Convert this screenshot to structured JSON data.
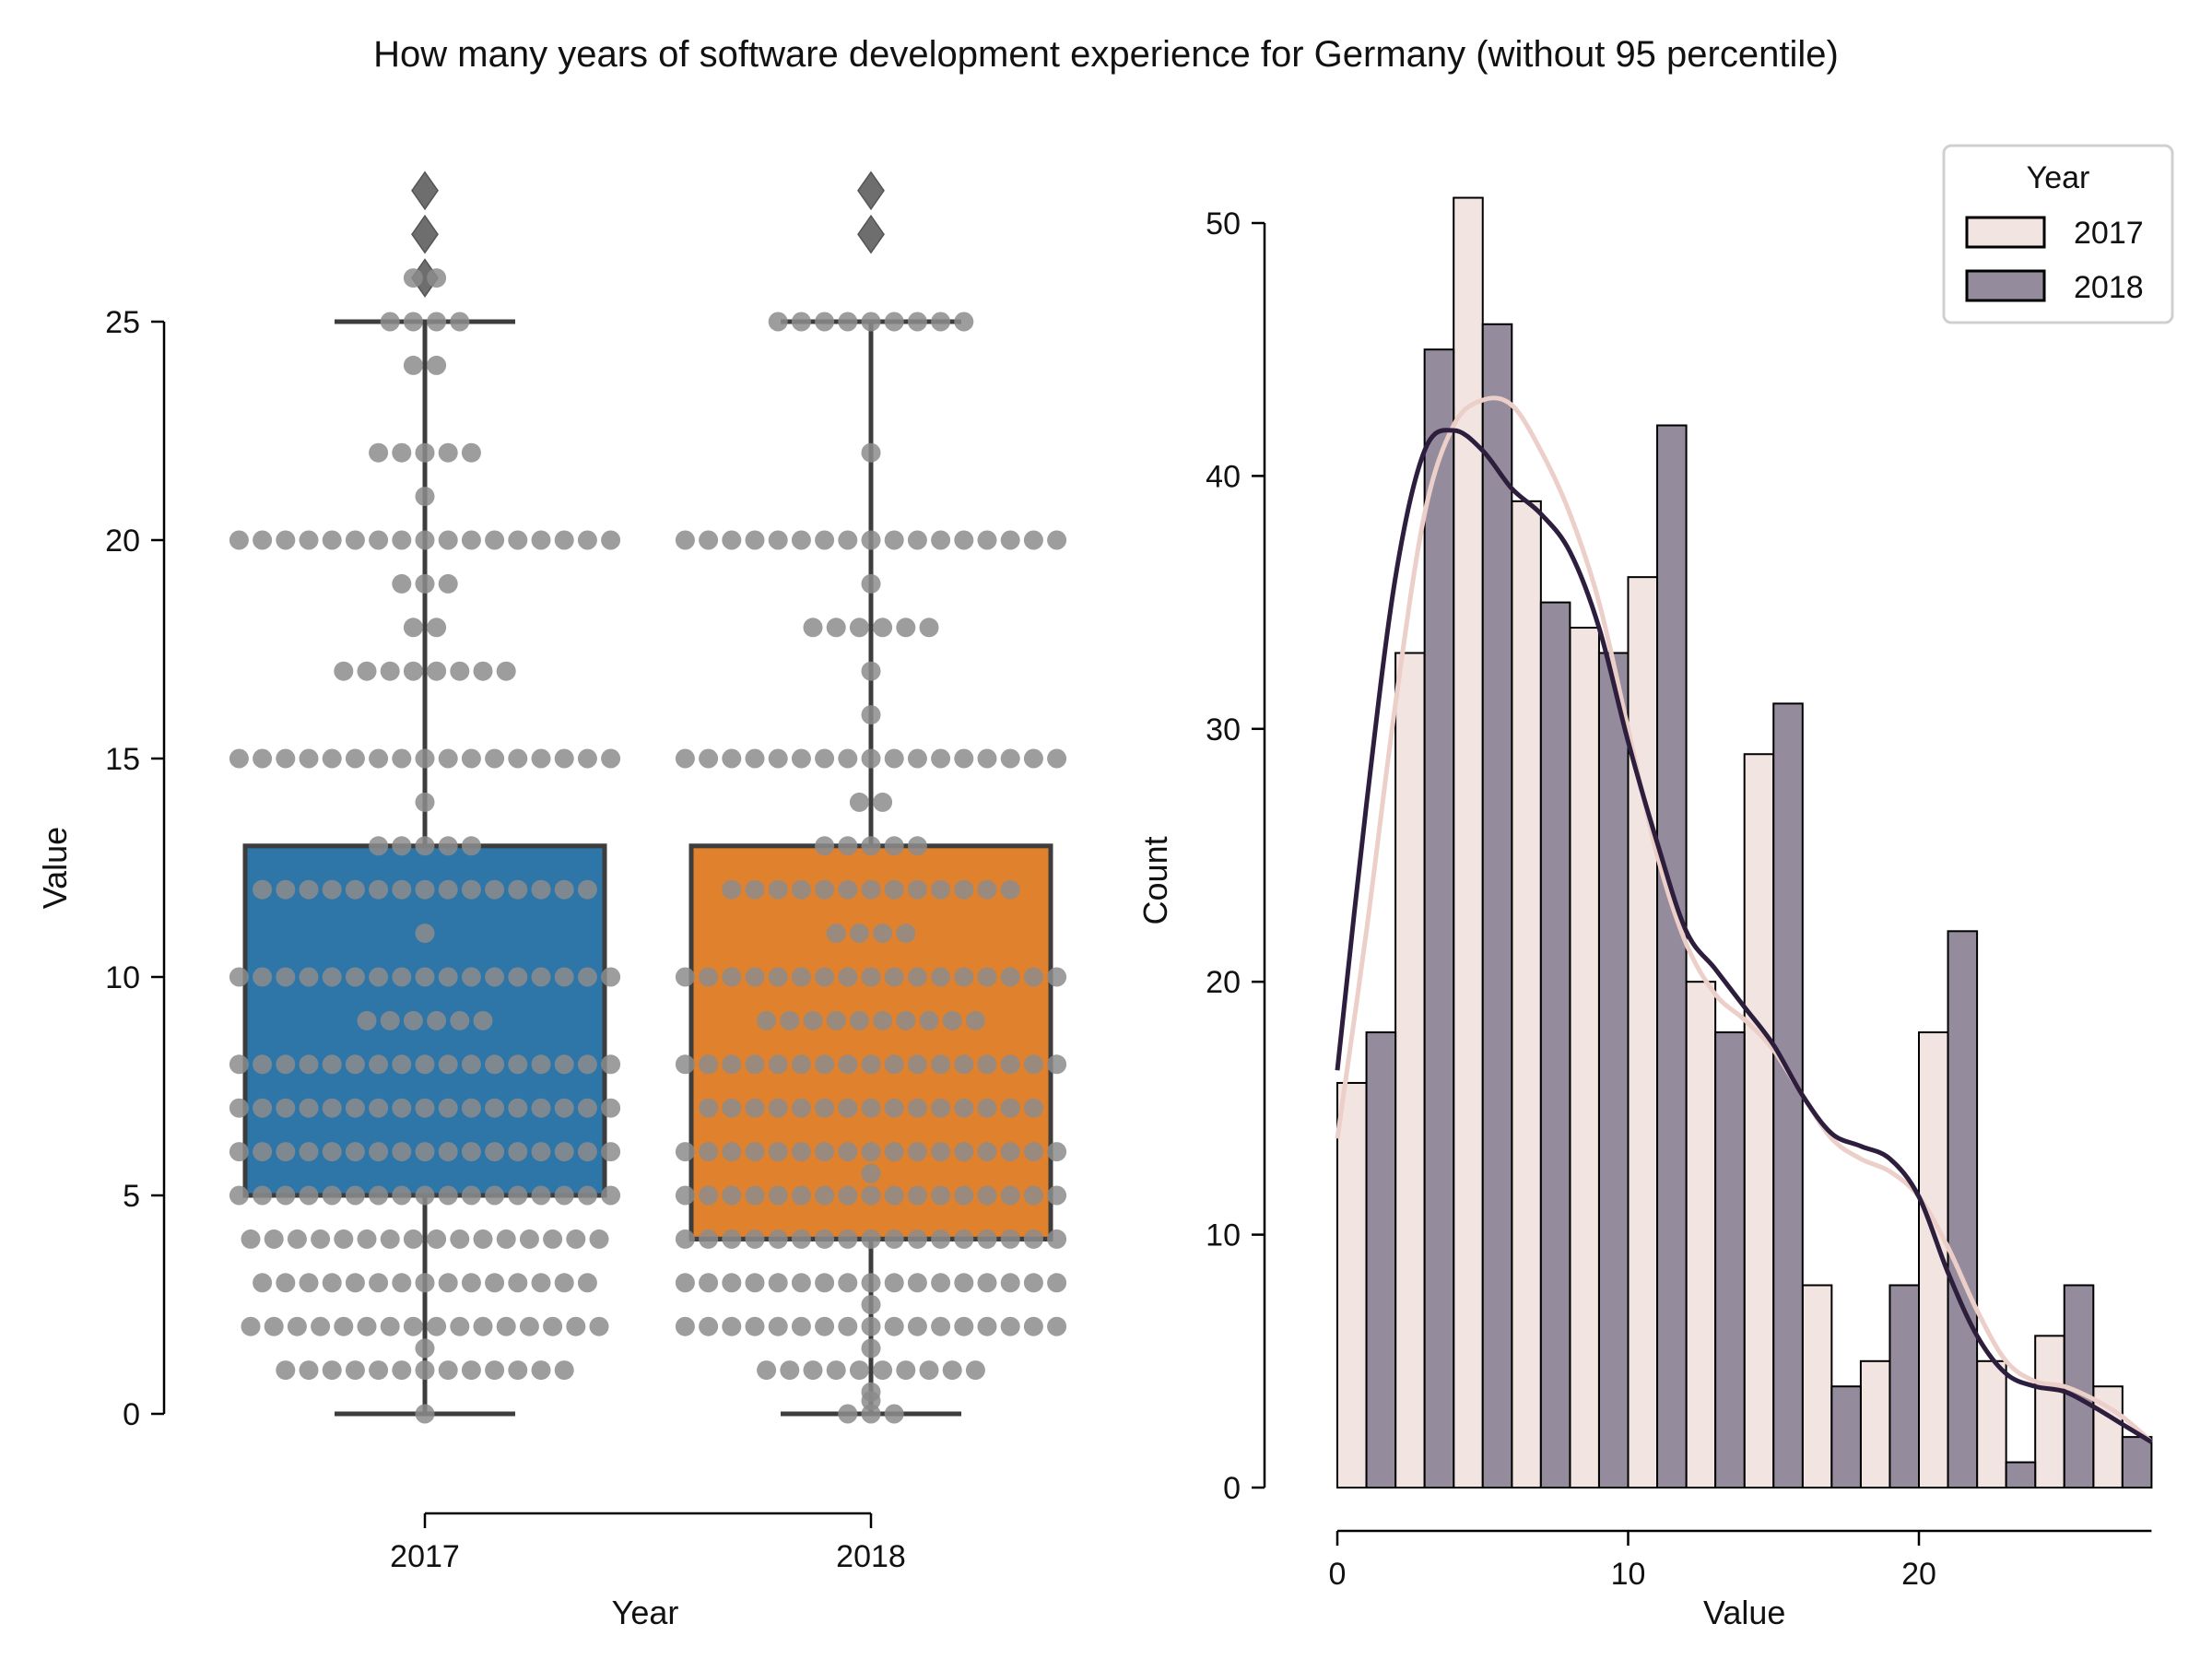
{
  "title": "How many years of software development experience for Germany (without 95 percentile)",
  "chart_data": [
    {
      "type": "box",
      "overlay": "swarm",
      "xlabel": "Year",
      "ylabel": "Value",
      "categories": [
        "2017",
        "2018"
      ],
      "ylim": [
        0,
        28
      ],
      "yticks": [
        0,
        5,
        10,
        15,
        20,
        25
      ],
      "grid": false,
      "colors": [
        "#2e75a8",
        "#e0812d"
      ],
      "swarm_color": "#8c8c8c",
      "outlier_color": "#6e6e6e",
      "boxes": [
        {
          "category": "2017",
          "whisker_low": 0,
          "q1": 5,
          "median": 5,
          "q3": 13,
          "whisker_high": 25,
          "outliers": [
            26,
            27,
            28
          ]
        },
        {
          "category": "2018",
          "whisker_low": 0,
          "q1": 4,
          "median": 4,
          "q3": 13,
          "whisker_high": 25,
          "outliers": [
            27,
            28
          ]
        }
      ],
      "swarm": [
        {
          "category": "2017",
          "levels": [
            {
              "value": 0,
              "n": 1
            },
            {
              "value": 1,
              "n": 13
            },
            {
              "value": 1.5,
              "n": 1
            },
            {
              "value": 2,
              "n": 16
            },
            {
              "value": 3,
              "n": 15
            },
            {
              "value": 4,
              "n": 16
            },
            {
              "value": 5,
              "n": 17
            },
            {
              "value": 6,
              "n": 17
            },
            {
              "value": 7,
              "n": 17
            },
            {
              "value": 8,
              "n": 17
            },
            {
              "value": 9,
              "n": 6
            },
            {
              "value": 10,
              "n": 17
            },
            {
              "value": 11,
              "n": 1
            },
            {
              "value": 12,
              "n": 15
            },
            {
              "value": 13,
              "n": 5
            },
            {
              "value": 14,
              "n": 1
            },
            {
              "value": 15,
              "n": 17
            },
            {
              "value": 17,
              "n": 8
            },
            {
              "value": 18,
              "n": 2
            },
            {
              "value": 19,
              "n": 3
            },
            {
              "value": 20,
              "n": 17
            },
            {
              "value": 21,
              "n": 1
            },
            {
              "value": 22,
              "n": 5
            },
            {
              "value": 24,
              "n": 2
            },
            {
              "value": 25,
              "n": 4
            },
            {
              "value": 26,
              "n": 2
            }
          ]
        },
        {
          "category": "2018",
          "levels": [
            {
              "value": 0,
              "n": 3
            },
            {
              "value": 0.3,
              "n": 1
            },
            {
              "value": 0.5,
              "n": 1
            },
            {
              "value": 1,
              "n": 10
            },
            {
              "value": 1.5,
              "n": 1
            },
            {
              "value": 2,
              "n": 17
            },
            {
              "value": 2.5,
              "n": 1
            },
            {
              "value": 3,
              "n": 17
            },
            {
              "value": 4,
              "n": 17
            },
            {
              "value": 5,
              "n": 17
            },
            {
              "value": 5.5,
              "n": 1
            },
            {
              "value": 6,
              "n": 17
            },
            {
              "value": 7,
              "n": 15
            },
            {
              "value": 8,
              "n": 17
            },
            {
              "value": 9,
              "n": 10
            },
            {
              "value": 10,
              "n": 17
            },
            {
              "value": 11,
              "n": 4
            },
            {
              "value": 12,
              "n": 13
            },
            {
              "value": 13,
              "n": 5
            },
            {
              "value": 14,
              "n": 2
            },
            {
              "value": 15,
              "n": 17
            },
            {
              "value": 16,
              "n": 1
            },
            {
              "value": 17,
              "n": 1
            },
            {
              "value": 18,
              "n": 6
            },
            {
              "value": 19,
              "n": 1
            },
            {
              "value": 20,
              "n": 17
            },
            {
              "value": 22,
              "n": 1
            },
            {
              "value": 25,
              "n": 9
            }
          ]
        }
      ]
    },
    {
      "type": "histogram",
      "multiple": "dodge",
      "kde": true,
      "xlabel": "Value",
      "ylabel": "Count",
      "xlim": [
        0,
        28
      ],
      "ylim": [
        0,
        52
      ],
      "xticks": [
        0,
        10,
        20
      ],
      "yticks": [
        0,
        10,
        20,
        30,
        40,
        50
      ],
      "bin_edges": [
        0,
        2,
        4,
        6,
        8,
        10,
        12,
        14,
        16,
        18,
        20,
        22,
        24,
        26,
        28
      ],
      "grid": false,
      "legend": {
        "title": "Year",
        "position": "top-right"
      },
      "series": [
        {
          "name": "2017",
          "color": "#f2e4e1",
          "line_color": "#ebcfc8",
          "counts": [
            16,
            33,
            51,
            39,
            34,
            36,
            20,
            29,
            8,
            5,
            18,
            5,
            6,
            4
          ],
          "kde": [
            [
              0,
              13.8
            ],
            [
              1,
              22
            ],
            [
              2,
              31
            ],
            [
              3,
              38.5
            ],
            [
              4,
              42
            ],
            [
              5,
              43
            ],
            [
              6,
              42.8
            ],
            [
              7,
              41
            ],
            [
              8,
              38.5
            ],
            [
              9,
              35
            ],
            [
              10,
              30
            ],
            [
              11,
              25
            ],
            [
              12,
              21.5
            ],
            [
              13,
              19.5
            ],
            [
              14,
              18.5
            ],
            [
              15,
              17.3
            ],
            [
              16,
              15.5
            ],
            [
              17,
              13.8
            ],
            [
              18,
              13
            ],
            [
              19,
              12.5
            ],
            [
              20,
              11.5
            ],
            [
              21,
              9.5
            ],
            [
              22,
              7
            ],
            [
              23,
              5
            ],
            [
              24,
              4.2
            ],
            [
              25,
              4
            ],
            [
              26,
              3.5
            ],
            [
              27,
              2.8
            ],
            [
              28,
              1.8
            ]
          ]
        },
        {
          "name": "2018",
          "color": "#948b9d",
          "line_color": "#2c1e3c",
          "counts": [
            18,
            45,
            46,
            35,
            33,
            42,
            18,
            31,
            4,
            8,
            22,
            1,
            8,
            2
          ],
          "kde": [
            [
              0,
              16.5
            ],
            [
              1,
              27
            ],
            [
              2,
              36
            ],
            [
              3,
              41
            ],
            [
              4,
              41.8
            ],
            [
              5,
              41
            ],
            [
              6,
              39.5
            ],
            [
              7,
              38.5
            ],
            [
              8,
              37
            ],
            [
              9,
              34
            ],
            [
              10,
              29.5
            ],
            [
              11,
              25.5
            ],
            [
              12,
              22
            ],
            [
              13,
              20.5
            ],
            [
              14,
              19
            ],
            [
              15,
              17.5
            ],
            [
              16,
              15.5
            ],
            [
              17,
              14
            ],
            [
              18,
              13.5
            ],
            [
              19,
              13
            ],
            [
              20,
              11.5
            ],
            [
              21,
              8.5
            ],
            [
              22,
              6
            ],
            [
              23,
              4.5
            ],
            [
              24,
              4
            ],
            [
              25,
              3.8
            ],
            [
              26,
              3.2
            ],
            [
              27,
              2.5
            ],
            [
              28,
              1.8
            ]
          ]
        }
      ]
    }
  ]
}
